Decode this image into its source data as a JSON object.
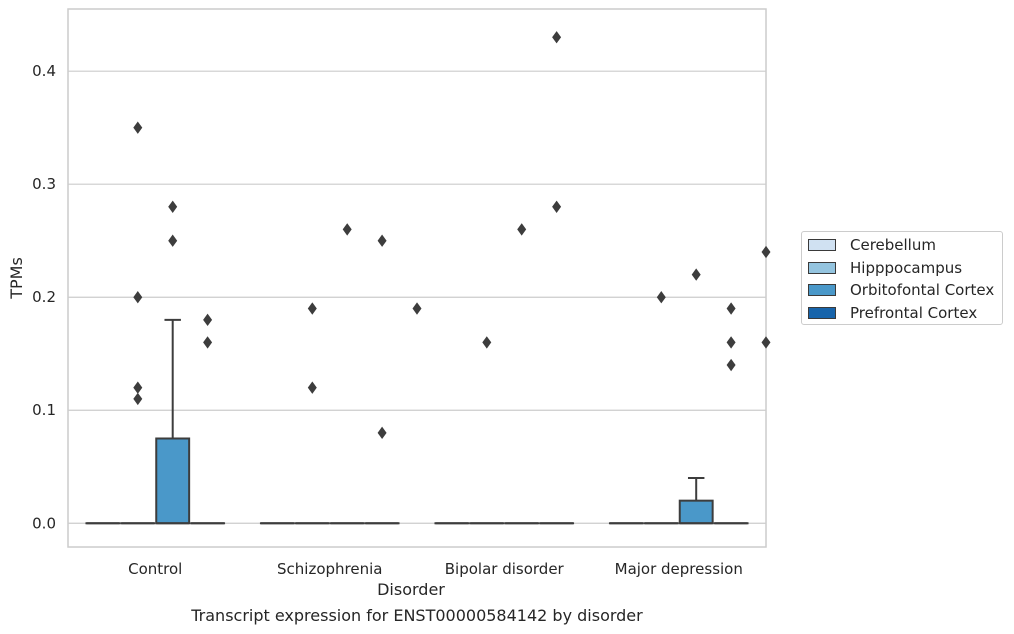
{
  "chart_data": {
    "type": "box",
    "title": "",
    "caption": "Transcript expression for ENST00000584142 by disorder",
    "xlabel": "Disorder",
    "ylabel": "TPMs",
    "ylim": [
      -0.021,
      0.455
    ],
    "yticks": [
      0.0,
      0.1,
      0.2,
      0.3,
      0.4
    ],
    "ytick_labels": [
      "0.0",
      "0.1",
      "0.2",
      "0.3",
      "0.4"
    ],
    "grid": true,
    "legend_position": "right",
    "categories": [
      "Control",
      "Schizophrenia",
      "Bipolar disorder",
      "Major depression"
    ],
    "series": [
      {
        "name": "Cerebellum",
        "color": "#d0e1f2",
        "boxes": [
          {
            "q1": 0,
            "median": 0,
            "q3": 0,
            "whisker_low": 0,
            "whisker_high": 0,
            "outliers": []
          },
          {
            "q1": 0,
            "median": 0,
            "q3": 0,
            "whisker_low": 0,
            "whisker_high": 0,
            "outliers": []
          },
          {
            "q1": 0,
            "median": 0,
            "q3": 0,
            "whisker_low": 0,
            "whisker_high": 0,
            "outliers": []
          },
          {
            "q1": 0,
            "median": 0,
            "q3": 0,
            "whisker_low": 0,
            "whisker_high": 0,
            "outliers": []
          }
        ]
      },
      {
        "name": "Hipppocampus",
        "color": "#94c4df",
        "boxes": [
          {
            "q1": 0,
            "median": 0,
            "q3": 0,
            "whisker_low": 0,
            "whisker_high": 0,
            "outliers": [
              0.12,
              0.11,
              0.2,
              0.35
            ]
          },
          {
            "q1": 0,
            "median": 0,
            "q3": 0,
            "whisker_low": 0,
            "whisker_high": 0,
            "outliers": [
              0.19,
              0.12
            ]
          },
          {
            "q1": 0,
            "median": 0,
            "q3": 0,
            "whisker_low": 0,
            "whisker_high": 0,
            "outliers": [
              0.16
            ]
          },
          {
            "q1": 0,
            "median": 0,
            "q3": 0,
            "whisker_low": 0,
            "whisker_high": 0,
            "outliers": [
              0.2
            ]
          }
        ]
      },
      {
        "name": "Orbitofontal Cortex",
        "color": "#4a98c9",
        "boxes": [
          {
            "q1": 0,
            "median": 0,
            "q3": 0.075,
            "whisker_low": 0,
            "whisker_high": 0.18,
            "outliers": [
              0.25,
              0.28
            ]
          },
          {
            "q1": 0,
            "median": 0,
            "q3": 0,
            "whisker_low": 0,
            "whisker_high": 0,
            "outliers": [
              0.26
            ]
          },
          {
            "q1": 0,
            "median": 0,
            "q3": 0,
            "whisker_low": 0,
            "whisker_high": 0,
            "outliers": [
              0.26
            ]
          },
          {
            "q1": 0,
            "median": 0,
            "q3": 0.02,
            "whisker_low": 0,
            "whisker_high": 0.04,
            "outliers": [
              0.22
            ]
          }
        ]
      },
      {
        "name": "Prefrontal Cortex",
        "color": "#1764ab",
        "boxes": [
          {
            "q1": 0,
            "median": 0,
            "q3": 0,
            "whisker_low": 0,
            "whisker_high": 0,
            "outliers": [
              0.16,
              0.18
            ]
          },
          {
            "q1": 0,
            "median": 0,
            "q3": 0,
            "whisker_low": 0,
            "whisker_high": 0,
            "outliers": [
              0.25,
              0.08
            ]
          },
          {
            "q1": 0,
            "median": 0,
            "q3": 0,
            "whisker_low": 0,
            "whisker_high": 0,
            "outliers": [
              0.28,
              0.43
            ]
          },
          {
            "q1": 0,
            "median": 0,
            "q3": 0,
            "whisker_low": 0,
            "whisker_high": 0,
            "outliers": [
              0.19,
              0.16,
              0.14
            ]
          }
        ]
      }
    ],
    "extra_outliers": [
      {
        "category_index": 1,
        "series_index": 4,
        "value": 0.19
      },
      {
        "category_index": 3,
        "series_index": 4,
        "value": 0.24
      },
      {
        "category_index": 3,
        "series_index": 4,
        "value": 0.16
      }
    ],
    "colors": {
      "grid": "#cccccc",
      "frame": "#cccccc",
      "line": "#3d3d3d",
      "flier": "#3d3d3d"
    }
  }
}
